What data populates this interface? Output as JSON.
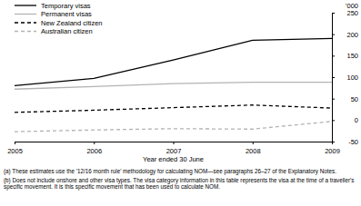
{
  "chart_data": {
    "type": "line",
    "x_label": "Year ended 30 June",
    "y_label": "'000",
    "x": [
      2005,
      2006,
      2007,
      2008,
      2009
    ],
    "xlim": [
      2005,
      2009
    ],
    "xticks": [
      2005,
      2006,
      2007,
      2008,
      2009
    ],
    "ylim": [
      -50,
      250
    ],
    "yticks": [
      -50,
      0,
      50,
      100,
      150,
      200,
      250
    ],
    "grid": false,
    "legend": "upper left",
    "series": [
      {
        "name": "Temporary visas",
        "color": "#000000",
        "line_style": "solid",
        "values": [
          80,
          97,
          140,
          186,
          190
        ]
      },
      {
        "name": "Permanent visas",
        "color": "#b3b3b3",
        "line_style": "solid",
        "values": [
          72,
          78,
          85,
          88,
          88
        ]
      },
      {
        "name": "New Zealand citizen",
        "color": "#000000",
        "line_style": "dashed",
        "values": [
          18,
          23,
          29,
          35,
          28
        ]
      },
      {
        "name": "Australian citizen",
        "color": "#b3b3b3",
        "line_style": "dashed",
        "values": [
          -27,
          -23,
          -20,
          -21,
          -3
        ]
      }
    ],
    "annotations": [
      "(a) These estimates use the '12/16 month rule' methodology for calculating NOM—see paragraphs 26–27 of the Explanatory Notes.",
      "(b) Does not include onshore and other visa types. The visa category information in this table represents the visa at the time of a traveller's specific movement. It is this specific movement that has been used to calculate NOM."
    ]
  }
}
